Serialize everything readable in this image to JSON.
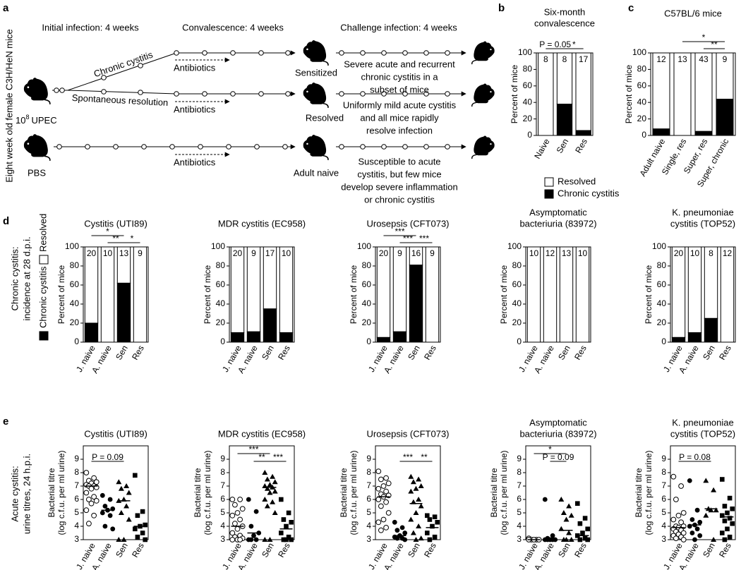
{
  "diagram": {
    "panel_label": "a",
    "side_label": "Eight week old female C3H/HeN mice",
    "phases": [
      "Initial infection: 4 weeks",
      "Convalescence: 4 weeks",
      "Challenge infection: 4 weeks"
    ],
    "inoculum": {
      "base": "10",
      "exponent": "8",
      "unit": "UPEC"
    },
    "control": "PBS",
    "branches": [
      "Chronic cystitis",
      "Spontaneous resolution"
    ],
    "treatment": "Antibiotics",
    "groups": [
      {
        "name": "Sensitized",
        "outcome": [
          "Severe acute and recurrent",
          "chronic cystitis in a",
          "subset of mice"
        ]
      },
      {
        "name": "Resolved",
        "outcome": [
          "Uniformly mild acute cystitis",
          "and all mice rapidly",
          "resolve infection"
        ]
      },
      {
        "name": "Adult naive",
        "outcome": [
          "Susceptible to acute",
          "cystitis, but few mice",
          "develop severe inflammation",
          "or chronic cystitis"
        ]
      }
    ]
  },
  "chart_data": [
    {
      "type": "stacked-bar",
      "panel_label": "b",
      "title": [
        "Six-month",
        "convalescence"
      ],
      "ylabel": [
        "Percent of mice"
      ],
      "categories": [
        "Naive",
        "Sen",
        "Res"
      ],
      "series": [
        {
          "name": "Chronic cystitis",
          "color": "#000000",
          "values": [
            0,
            38,
            6
          ]
        },
        {
          "name": "Resolved",
          "color": "#ffffff",
          "values": [
            100,
            62,
            94
          ]
        }
      ],
      "counts": [
        8,
        8,
        17
      ],
      "brackets": [
        {
          "label": "P = 0.05",
          "between": [
            "Naive",
            "Sen"
          ]
        },
        {
          "label": "*",
          "between": [
            "Sen",
            "Res"
          ]
        }
      ],
      "ylim": [
        0,
        100
      ],
      "yticks": [
        0,
        20,
        40,
        60,
        80,
        100
      ],
      "legend": "below"
    },
    {
      "type": "stacked-bar",
      "panel_label": "c",
      "title": [
        "C57BL/6 mice"
      ],
      "ylabel": [
        "Percent of mice"
      ],
      "categories": [
        "Adult naive",
        "Single, res",
        "Super, res",
        "Super, chronic"
      ],
      "series": [
        {
          "name": "Chronic cystitis",
          "color": "#000000",
          "values": [
            8,
            0,
            5,
            44
          ]
        },
        {
          "name": "Resolved",
          "color": "#ffffff",
          "values": [
            92,
            100,
            95,
            56
          ]
        }
      ],
      "counts": [
        12,
        13,
        43,
        9
      ],
      "brackets": [
        {
          "label": "*",
          "between": [
            "Single, res",
            "Super, chronic"
          ]
        },
        {
          "label": "**",
          "between": [
            "Super, res",
            "Super, chronic"
          ]
        }
      ],
      "ylim": [
        0,
        100
      ],
      "yticks": [
        0,
        20,
        40,
        60,
        80,
        100
      ]
    },
    {
      "type": "stacked-bar",
      "panel_label": "d",
      "row_label": [
        "Chronic cystitis:",
        "incidence at 28 d.p.i."
      ],
      "title": [
        "Cystitis (UTI89)"
      ],
      "ylabel": [
        "Percent of mice"
      ],
      "categories": [
        "J. naive",
        "A. naive",
        "Sen",
        "Res"
      ],
      "series": [
        {
          "name": "Chronic cystitis",
          "color": "#000000",
          "values": [
            20,
            0,
            62,
            0
          ]
        },
        {
          "name": "Resolved",
          "color": "#ffffff",
          "values": [
            80,
            100,
            38,
            100
          ]
        }
      ],
      "counts": [
        20,
        10,
        13,
        9
      ],
      "brackets": [
        {
          "label": "*",
          "between": [
            "J. naive",
            "Sen"
          ]
        },
        {
          "label": "**",
          "between": [
            "A. naive",
            "Sen"
          ]
        },
        {
          "label": "*",
          "between": [
            "Sen",
            "Res"
          ]
        }
      ],
      "ylim": [
        0,
        100
      ],
      "yticks": [
        0,
        20,
        40,
        60,
        80,
        100
      ],
      "legend": "left"
    },
    {
      "type": "stacked-bar",
      "title": [
        "MDR cystitis (EC958)"
      ],
      "ylabel": [
        "Percent of mice"
      ],
      "categories": [
        "J. naive",
        "A. naive",
        "Sen",
        "Res"
      ],
      "series": [
        {
          "name": "Chronic cystitis",
          "color": "#000000",
          "values": [
            10,
            11,
            35,
            10
          ]
        },
        {
          "name": "Resolved",
          "color": "#ffffff",
          "values": [
            90,
            89,
            65,
            90
          ]
        }
      ],
      "counts": [
        20,
        9,
        17,
        10
      ],
      "brackets": [],
      "ylim": [
        0,
        100
      ],
      "yticks": [
        0,
        20,
        40,
        60,
        80,
        100
      ]
    },
    {
      "type": "stacked-bar",
      "title": [
        "Urosepsis (CFT073)"
      ],
      "ylabel": [
        "Percent of mice"
      ],
      "categories": [
        "J. naive",
        "A. naive",
        "Sen",
        "Res"
      ],
      "series": [
        {
          "name": "Chronic cystitis",
          "color": "#000000",
          "values": [
            5,
            11,
            81,
            0
          ]
        },
        {
          "name": "Resolved",
          "color": "#ffffff",
          "values": [
            95,
            89,
            19,
            100
          ]
        }
      ],
      "counts": [
        20,
        9,
        16,
        9
      ],
      "brackets": [
        {
          "label": "***",
          "between": [
            "J. naive",
            "Sen"
          ]
        },
        {
          "label": "***",
          "between": [
            "A. naive",
            "Sen"
          ]
        },
        {
          "label": "***",
          "between": [
            "Sen",
            "Res"
          ]
        }
      ],
      "ylim": [
        0,
        100
      ],
      "yticks": [
        0,
        20,
        40,
        60,
        80,
        100
      ]
    },
    {
      "type": "stacked-bar",
      "title": [
        "Asymptomatic",
        "bacteriuria (83972)"
      ],
      "ylabel": [
        "Percent of mice"
      ],
      "categories": [
        "J. naive",
        "A. naive",
        "Sen",
        "Res"
      ],
      "series": [
        {
          "name": "Chronic cystitis",
          "color": "#000000",
          "values": [
            0,
            0,
            0,
            0
          ]
        },
        {
          "name": "Resolved",
          "color": "#ffffff",
          "values": [
            100,
            100,
            100,
            100
          ]
        }
      ],
      "counts": [
        10,
        12,
        13,
        10
      ],
      "brackets": [],
      "ylim": [
        0,
        100
      ],
      "yticks": [
        0,
        20,
        40,
        60,
        80,
        100
      ]
    },
    {
      "type": "stacked-bar",
      "title": [
        "K. pneumoniae",
        "cystitis (TOP52)"
      ],
      "ylabel": [
        "Percent of mice"
      ],
      "categories": [
        "J. naive",
        "A. naive",
        "Sen",
        "Res"
      ],
      "series": [
        {
          "name": "Chronic cystitis",
          "color": "#000000",
          "values": [
            5,
            10,
            25,
            0
          ]
        },
        {
          "name": "Resolved",
          "color": "#ffffff",
          "values": [
            95,
            90,
            75,
            100
          ]
        }
      ],
      "counts": [
        20,
        10,
        8,
        12
      ],
      "brackets": [],
      "ylim": [
        0,
        100
      ],
      "yticks": [
        0,
        20,
        40,
        60,
        80,
        100
      ]
    },
    {
      "type": "dot-plot",
      "panel_label": "e",
      "row_label": [
        "Acute cystitis:",
        "urine titres, 24 h.p.i."
      ],
      "title": [
        "Cystitis (UTI89)"
      ],
      "ylabel": [
        "Bacterial titre",
        "(log c.f.u. per ml urine)"
      ],
      "categories": [
        "J. naive",
        "A. naive",
        "Sen",
        "Res"
      ],
      "markers": [
        "open-circle",
        "filled-circle",
        "triangle",
        "square"
      ],
      "values": [
        [
          8.0,
          7.6,
          7.4,
          7.3,
          7.2,
          7.1,
          7.0,
          7.0,
          6.9,
          6.8,
          6.5,
          6.2,
          6.0,
          5.9,
          5.7,
          5.2,
          4.8,
          4.2
        ],
        [
          6.3,
          6.0,
          5.5,
          5.3,
          5.2,
          5.0,
          4.8,
          4.0,
          3.8
        ],
        [
          7.3,
          7.0,
          6.8,
          6.5,
          6.0,
          5.9,
          5.5,
          5.0,
          4.5,
          3.0,
          3.0
        ],
        [
          7.8,
          5.1,
          4.8,
          4.1,
          4.0,
          3.8,
          3.5,
          3.2,
          3.0
        ]
      ],
      "medians": [
        7.0,
        5.2,
        5.9,
        4.0
      ],
      "brackets": [
        {
          "label": "P = 0.09",
          "between": [
            "J. naive",
            "Sen"
          ]
        }
      ],
      "ylim": [
        3,
        10
      ],
      "yticks": [
        3,
        4,
        5,
        6,
        7,
        8,
        9
      ]
    },
    {
      "type": "dot-plot",
      "title": [
        "MDR cystitis (EC958)"
      ],
      "ylabel": [
        "Bacterial titre",
        "(log c.f.u. per ml urine)"
      ],
      "categories": [
        "J. naive",
        "A. naive",
        "Sen",
        "Res"
      ],
      "markers": [
        "open-circle",
        "filled-circle",
        "triangle",
        "square"
      ],
      "values": [
        [
          6.0,
          6.0,
          5.6,
          5.3,
          5.0,
          4.8,
          4.5,
          4.2,
          4.0,
          3.8,
          3.5,
          3.3,
          3.2,
          3.1,
          3.0,
          3.0,
          3.0
        ],
        [
          6.0,
          5.1,
          4.0,
          3.5,
          3.3,
          3.0,
          3.0,
          3.0
        ],
        [
          8.0,
          7.7,
          7.5,
          7.3,
          7.1,
          7.0,
          6.9,
          6.8,
          6.6,
          6.5,
          6.0,
          5.8,
          5.5,
          5.0,
          3.0,
          3.0
        ],
        [
          6.0,
          5.0,
          4.5,
          4.3,
          4.0,
          3.5,
          3.2,
          3.0,
          3.0,
          3.0
        ]
      ],
      "medians": [
        4.0,
        3.5,
        6.9,
        3.8
      ],
      "brackets": [
        {
          "label": "***",
          "between": [
            "J. naive",
            "Sen"
          ]
        },
        {
          "label": "**",
          "between": [
            "A. naive",
            "Sen"
          ]
        },
        {
          "label": "***",
          "between": [
            "Sen",
            "Res"
          ]
        }
      ],
      "ylim": [
        3,
        10
      ],
      "yticks": [
        3,
        4,
        5,
        6,
        7,
        8,
        9
      ]
    },
    {
      "type": "dot-plot",
      "title": [
        "Urosepsis (CFT073)"
      ],
      "ylabel": [
        "Bacterial titre",
        "(log c.f.u. per ml urine)"
      ],
      "categories": [
        "J. naive",
        "A. naive",
        "Sen",
        "Res"
      ],
      "markers": [
        "open-circle",
        "filled-circle",
        "triangle",
        "square"
      ],
      "values": [
        [
          8.1,
          7.6,
          7.5,
          7.2,
          7.0,
          6.8,
          6.6,
          6.4,
          6.3,
          6.2,
          6.0,
          5.8,
          5.5,
          5.0,
          4.5,
          4.3,
          3.9,
          3.7
        ],
        [
          4.3,
          3.9,
          3.7,
          3.5,
          3.3,
          3.2,
          3.1,
          3.1,
          3.0
        ],
        [
          7.7,
          7.5,
          7.3,
          7.0,
          6.8,
          6.6,
          6.0,
          5.8,
          5.5,
          5.0,
          4.5,
          4.0,
          3.5,
          3.1,
          3.0
        ],
        [
          4.8,
          4.7,
          4.5,
          4.3,
          4.0,
          3.5,
          3.2,
          3.0
        ]
      ],
      "medians": [
        6.2,
        3.3,
        5.7,
        3.9
      ],
      "brackets": [
        {
          "label": "***",
          "between": [
            "A. naive",
            "Sen"
          ]
        },
        {
          "label": "**",
          "between": [
            "Sen",
            "Res"
          ]
        }
      ],
      "ylim": [
        3,
        10
      ],
      "yticks": [
        3,
        4,
        5,
        6,
        7,
        8,
        9
      ]
    },
    {
      "type": "dot-plot",
      "title": [
        "Asymptomatic",
        "bacteriuria (83972)"
      ],
      "ylabel": [
        "Bacterial titre",
        "(log c.f.u. per ml urine)"
      ],
      "categories": [
        "J. naive",
        "A. naive",
        "Sen",
        "Res"
      ],
      "markers": [
        "open-circle",
        "filled-circle",
        "triangle",
        "square"
      ],
      "values": [
        [
          3.1,
          3.0,
          3.0,
          3.0,
          3.0,
          3.0
        ],
        [
          6.0,
          3.3,
          3.1,
          3.0,
          3.0,
          3.0,
          3.0,
          3.0
        ],
        [
          6.0,
          5.5,
          5.0,
          4.8,
          4.5,
          3.8,
          3.5,
          3.0,
          3.0,
          3.0
        ],
        [
          5.7,
          4.6,
          4.2,
          3.8,
          3.5,
          3.3,
          3.1,
          3.0,
          3.0
        ]
      ],
      "medians": [
        3.0,
        3.0,
        3.7,
        3.3
      ],
      "brackets": [
        {
          "label": "*",
          "between": [
            "J. naive",
            "Sen"
          ]
        },
        {
          "label": "P = 0.09",
          "between": [
            "A. naive",
            "Sen"
          ]
        }
      ],
      "ylim": [
        3,
        10
      ],
      "yticks": [
        3,
        4,
        5,
        6,
        7,
        8,
        9
      ]
    },
    {
      "type": "dot-plot",
      "title": [
        "K. pneumoniae",
        "cystitis (TOP52)"
      ],
      "ylabel": [
        "Bacterial titre",
        "(log c.f.u. per ml urine)"
      ],
      "categories": [
        "J. naive",
        "A. naive",
        "Sen",
        "Res"
      ],
      "markers": [
        "open-circle",
        "filled-circle",
        "triangle",
        "square"
      ],
      "values": [
        [
          7.7,
          7.0,
          6.0,
          5.0,
          4.8,
          4.5,
          4.3,
          4.0,
          4.0,
          3.9,
          3.8,
          3.7,
          3.6,
          3.5,
          3.4,
          3.3,
          3.2,
          3.1,
          3.0
        ],
        [
          7.4,
          5.2,
          4.5,
          4.3,
          4.1,
          4.0,
          3.8,
          3.5,
          3.3,
          3.0
        ],
        [
          7.4,
          6.7,
          5.3,
          5.2,
          5.2,
          4.8,
          3.0
        ],
        [
          7.5,
          6.1,
          5.5,
          5.3,
          5.0,
          4.8,
          4.6,
          4.4,
          4.2,
          3.8,
          3.5,
          3.2,
          3.0
        ]
      ],
      "medians": [
        3.9,
        4.1,
        5.3,
        4.7
      ],
      "brackets": [
        {
          "label": "P = 0.08",
          "between": [
            "J. naive",
            "Sen"
          ]
        }
      ],
      "ylim": [
        3,
        10
      ],
      "yticks": [
        3,
        4,
        5,
        6,
        7,
        8,
        9
      ]
    }
  ]
}
